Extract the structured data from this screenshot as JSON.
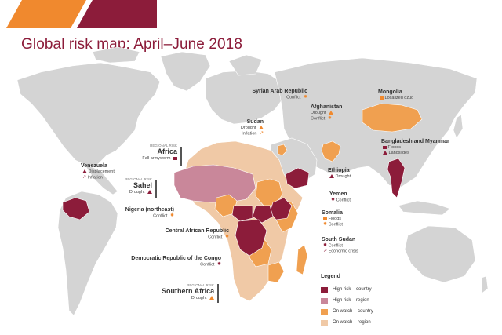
{
  "title": "Global risk map: April–June 2018",
  "colors": {
    "high_country": "#8c1c3a",
    "high_region": "#c9879a",
    "watch_country": "#f0a050",
    "watch_region": "#f0c9a6",
    "land": "#d4d4d4",
    "ocean": "#ffffff"
  },
  "labels": {
    "venezuela": {
      "name": "Venezuela",
      "risks": [
        "Displacement",
        "Inflation"
      ]
    },
    "syria": {
      "name": "Syrian Arab Republic",
      "risks": [
        "Conflict"
      ]
    },
    "sudan": {
      "name": "Sudan",
      "risks": [
        "Drought",
        "Inflation"
      ]
    },
    "afghanistan": {
      "name": "Afghanistan",
      "risks": [
        "Drought",
        "Conflict"
      ]
    },
    "mongolia": {
      "name": "Mongolia",
      "risks": [
        "Localized dzud"
      ]
    },
    "bangladesh": {
      "name": "Bangladesh and Myanmar",
      "risks": [
        "Floods",
        "Landslides"
      ]
    },
    "africa": {
      "region_tag": "Regional risk",
      "name": "Africa",
      "risks": [
        "Fall armyworm"
      ]
    },
    "sahel": {
      "region_tag": "Regional risk",
      "name": "Sahel",
      "risks": [
        "Drought"
      ]
    },
    "ethiopia": {
      "name": "Ethiopia",
      "risks": [
        "Drought"
      ]
    },
    "yemen": {
      "name": "Yemen",
      "risks": [
        "Conflict"
      ]
    },
    "nigeria": {
      "name": "Nigeria (northeast)",
      "risks": [
        "Conflict"
      ]
    },
    "somalia": {
      "name": "Somalia",
      "risks": [
        "Floods",
        "Conflict"
      ]
    },
    "car": {
      "name": "Central African Republic",
      "risks": [
        "Conflict"
      ]
    },
    "south_sudan": {
      "name": "South Sudan",
      "risks": [
        "Conflict",
        "Economic crisis"
      ]
    },
    "drc": {
      "name": "Democratic Republic of the Congo",
      "risks": [
        "Conflict"
      ]
    },
    "southern_africa": {
      "region_tag": "Regional risk",
      "name": "Southern Africa",
      "risks": [
        "Drought"
      ]
    }
  },
  "legend": {
    "title": "Legend",
    "items": [
      {
        "label": "High risk – country",
        "color": "#8c1c3a"
      },
      {
        "label": "High risk – region",
        "color": "#c9879a"
      },
      {
        "label": "On watch – country",
        "color": "#f0a050"
      },
      {
        "label": "On watch – region",
        "color": "#f0c9a6"
      }
    ]
  }
}
